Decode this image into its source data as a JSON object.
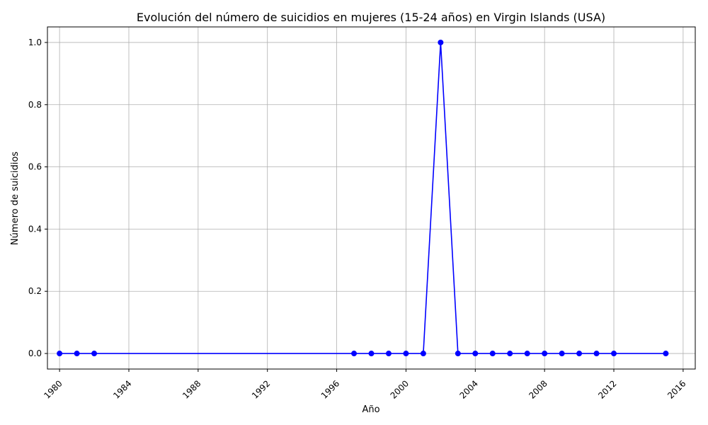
{
  "chart_data": {
    "type": "line",
    "title": "Evolución del número de suicidios en mujeres (15-24 años) en Virgin Islands (USA)",
    "xlabel": "Año",
    "ylabel": "Número de suicidios",
    "xlim": [
      1979.3,
      2016.7
    ],
    "ylim": [
      -0.05,
      1.05
    ],
    "x_ticks": [
      "1980",
      "1984",
      "1988",
      "1992",
      "1996",
      "2000",
      "2004",
      "2008",
      "2012",
      "2016"
    ],
    "y_ticks": [
      "0.0",
      "0.2",
      "0.4",
      "0.6",
      "0.8",
      "1.0"
    ],
    "grid": true,
    "series": [
      {
        "color": "#0000ff",
        "marker": "circle",
        "x": [
          1980,
          1981,
          1982,
          1997,
          1998,
          1999,
          2000,
          2001,
          2002,
          2003,
          2004,
          2005,
          2006,
          2007,
          2008,
          2009,
          2010,
          2011,
          2012,
          2015
        ],
        "y": [
          0,
          0,
          0,
          0,
          0,
          0,
          0,
          0,
          1,
          0,
          0,
          0,
          0,
          0,
          0,
          0,
          0,
          0,
          0,
          0
        ]
      }
    ]
  }
}
